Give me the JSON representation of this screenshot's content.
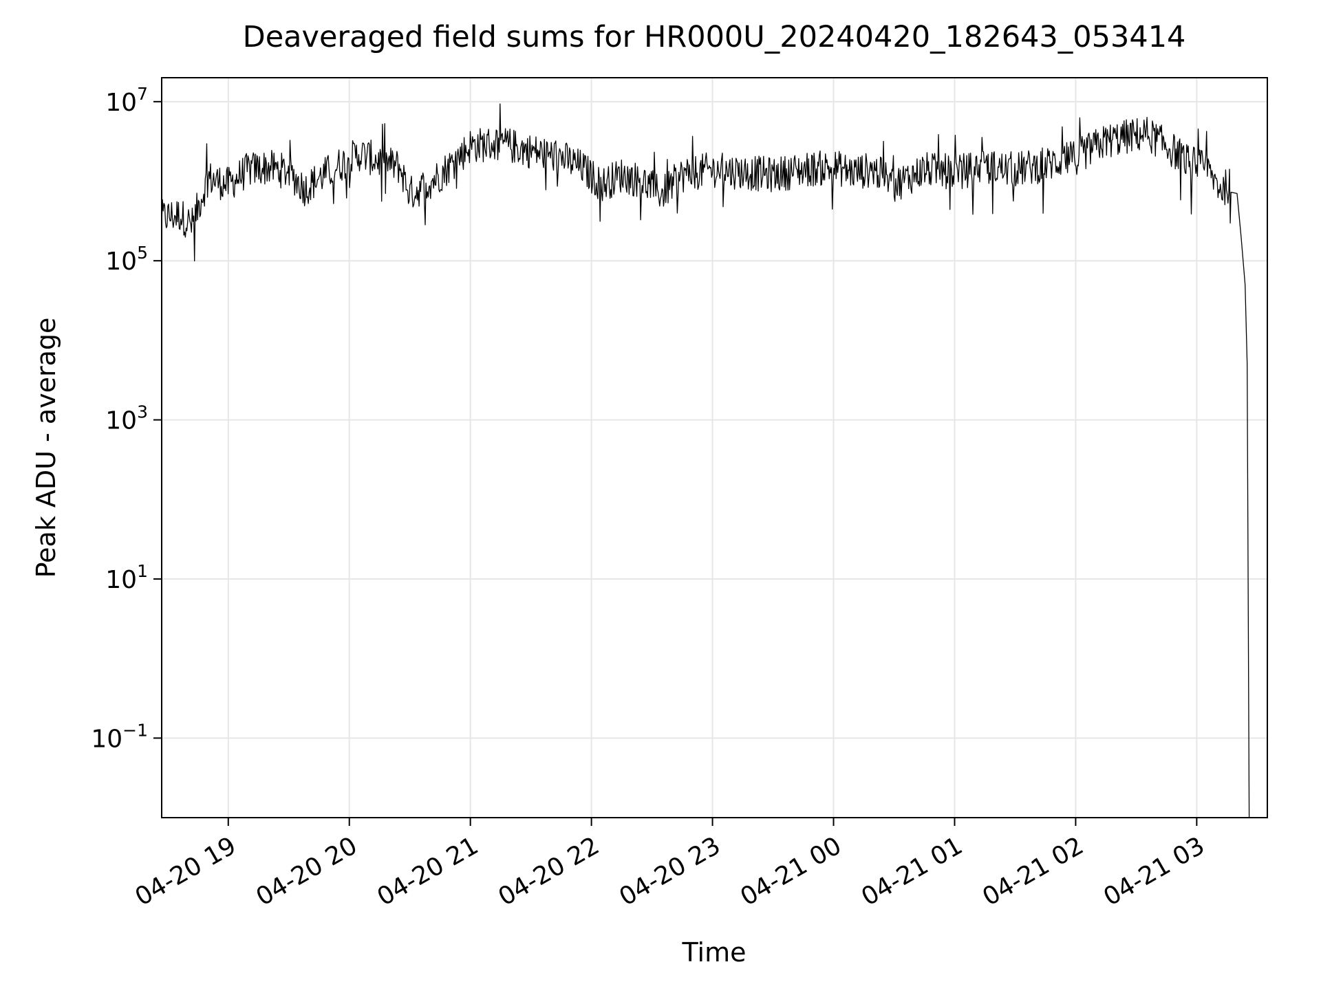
{
  "chart_data": {
    "type": "line",
    "title": "Deaveraged field sums for HR000U_20240420_182643_053414",
    "xlabel": "Time",
    "ylabel": "Peak ADU - average",
    "y_scale": "log",
    "ylim": [
      0.01,
      20000000
    ],
    "xlim": [
      "2024-04-20 18:27",
      "2024-04-21 03:35"
    ],
    "grid": true,
    "line_color": "#000000",
    "grid_color": "#e6e6e6",
    "x_tick_labels": [
      "04-20 19",
      "04-20 20",
      "04-20 21",
      "04-20 22",
      "04-20 23",
      "04-21 00",
      "04-21 01",
      "04-21 02",
      "04-21 03"
    ],
    "x_ticks": [
      "2024-04-20 19:00",
      "2024-04-20 20:00",
      "2024-04-20 21:00",
      "2024-04-20 22:00",
      "2024-04-20 23:00",
      "2024-04-21 00:00",
      "2024-04-21 01:00",
      "2024-04-21 02:00",
      "2024-04-21 03:00"
    ],
    "y_ticks": [
      {
        "value": 10000000,
        "base": "10",
        "exp": "7"
      },
      {
        "value": 100000,
        "base": "10",
        "exp": "5"
      },
      {
        "value": 1000,
        "base": "10",
        "exp": "3"
      },
      {
        "value": 10,
        "base": "10",
        "exp": "1"
      },
      {
        "value": 0.1,
        "base": "10",
        "exp": "−1"
      }
    ],
    "series": [
      {
        "x": [
          "2024-04-20 18:27",
          "2024-04-20 18:36",
          "2024-04-20 18:42",
          "2024-04-20 18:50",
          "2024-04-20 19:00",
          "2024-04-20 19:10",
          "2024-04-20 19:20",
          "2024-04-20 19:30",
          "2024-04-20 19:38",
          "2024-04-20 19:45",
          "2024-04-20 19:55",
          "2024-04-20 20:05",
          "2024-04-20 20:15",
          "2024-04-20 20:25",
          "2024-04-20 20:30",
          "2024-04-20 20:35",
          "2024-04-20 20:45",
          "2024-04-20 21:00",
          "2024-04-20 21:15",
          "2024-04-20 21:30",
          "2024-04-20 21:45",
          "2024-04-20 21:55",
          "2024-04-20 22:05",
          "2024-04-20 22:15",
          "2024-04-20 22:25",
          "2024-04-20 22:35",
          "2024-04-20 22:45",
          "2024-04-20 23:00",
          "2024-04-20 23:15",
          "2024-04-20 23:30",
          "2024-04-20 23:45",
          "2024-04-21 00:00",
          "2024-04-21 00:10",
          "2024-04-21 00:20",
          "2024-04-21 00:30",
          "2024-04-21 00:45",
          "2024-04-21 01:00",
          "2024-04-21 01:15",
          "2024-04-21 01:30",
          "2024-04-21 01:45",
          "2024-04-21 02:00",
          "2024-04-21 02:15",
          "2024-04-21 02:25",
          "2024-04-21 02:35",
          "2024-04-21 02:45",
          "2024-04-21 02:55",
          "2024-04-21 03:05",
          "2024-04-21 03:12",
          "2024-04-21 03:17",
          "2024-04-21 03:20",
          "2024-04-21 03:22",
          "2024-04-21 03:24",
          "2024-04-21 03:25",
          "2024-04-21 03:26"
        ],
        "y": [
          350000,
          380000,
          280000,
          1100000,
          900000,
          1400000,
          1500000,
          1300000,
          800000,
          1100000,
          1600000,
          2200000,
          1800000,
          1500000,
          700000,
          800000,
          1200000,
          2800000,
          3000000,
          2400000,
          2000000,
          1500000,
          900000,
          1200000,
          1000000,
          700000,
          1200000,
          1400000,
          1300000,
          1200000,
          1400000,
          1500000,
          1300000,
          1400000,
          900000,
          1400000,
          1300000,
          1500000,
          1400000,
          1600000,
          2000000,
          3200000,
          3600000,
          4000000,
          2800000,
          1800000,
          1400000,
          800000,
          900000,
          700000,
          200000,
          50000,
          5000,
          0.01
        ]
      }
    ]
  }
}
